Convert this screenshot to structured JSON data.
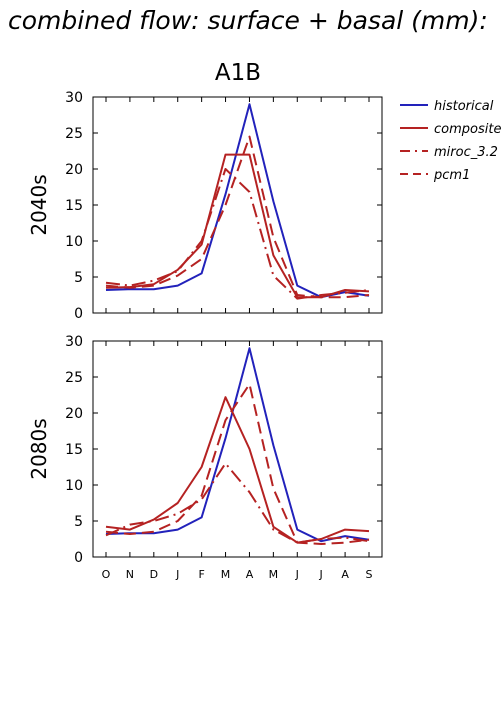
{
  "figure": {
    "title": "combined flow: surface + basal (mm):",
    "scenario": "A1B"
  },
  "legend": [
    {
      "name": "historical",
      "color": "#2222bb",
      "dash": "solid"
    },
    {
      "name": "composite",
      "color": "#b52222",
      "dash": "solid"
    },
    {
      "name": "miroc_3.2",
      "color": "#b52222",
      "dash": "dashdot"
    },
    {
      "name": "pcm1",
      "color": "#b52222",
      "dash": "dashed"
    }
  ],
  "chart_data": [
    {
      "type": "line",
      "ylabel": "2040s",
      "categories": [
        "O",
        "N",
        "D",
        "J",
        "F",
        "M",
        "A",
        "M",
        "J",
        "J",
        "A",
        "S"
      ],
      "ylim": [
        0,
        30
      ],
      "yticks": [
        0,
        5,
        10,
        15,
        20,
        25,
        30
      ],
      "series": [
        {
          "name": "historical",
          "values": [
            3.2,
            3.3,
            3.3,
            3.8,
            5.5,
            16.5,
            29.0,
            15.5,
            3.8,
            2.2,
            2.9,
            2.4
          ]
        },
        {
          "name": "composite",
          "values": [
            3.5,
            3.6,
            4.0,
            6.0,
            9.5,
            22.0,
            22.0,
            8.0,
            2.2,
            2.2,
            3.2,
            3.0
          ]
        },
        {
          "name": "miroc_3.2",
          "values": [
            4.2,
            3.8,
            4.5,
            5.8,
            10.0,
            20.0,
            16.8,
            5.2,
            2.0,
            2.5,
            2.8,
            3.2
          ]
        },
        {
          "name": "pcm1",
          "values": [
            3.8,
            3.5,
            3.8,
            5.2,
            7.5,
            15.0,
            24.5,
            10.5,
            2.5,
            2.2,
            2.2,
            2.5
          ]
        }
      ]
    },
    {
      "type": "line",
      "ylabel": "2080s",
      "categories": [
        "O",
        "N",
        "D",
        "J",
        "F",
        "M",
        "A",
        "M",
        "J",
        "J",
        "A",
        "S"
      ],
      "ylim": [
        0,
        30
      ],
      "yticks": [
        0,
        5,
        10,
        15,
        20,
        25,
        30
      ],
      "series": [
        {
          "name": "historical",
          "values": [
            3.2,
            3.3,
            3.3,
            3.8,
            5.5,
            16.5,
            29.0,
            15.5,
            3.8,
            2.2,
            2.9,
            2.4
          ]
        },
        {
          "name": "composite",
          "values": [
            4.2,
            3.8,
            5.2,
            7.5,
            12.5,
            22.2,
            15.0,
            4.2,
            2.0,
            2.5,
            3.8,
            3.6
          ]
        },
        {
          "name": "miroc_3.2",
          "values": [
            3.0,
            4.5,
            5.0,
            6.0,
            8.0,
            13.0,
            9.0,
            3.8,
            2.0,
            2.5,
            2.7,
            2.2
          ]
        },
        {
          "name": "pcm1",
          "values": [
            3.5,
            3.2,
            3.5,
            5.0,
            8.5,
            19.0,
            24.0,
            9.5,
            2.0,
            1.8,
            2.0,
            2.4
          ]
        }
      ]
    }
  ]
}
